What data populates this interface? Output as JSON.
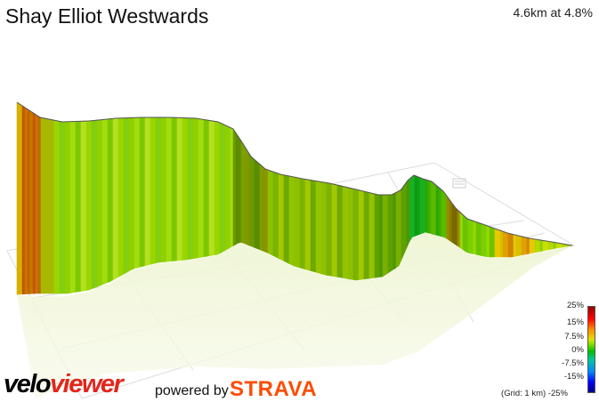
{
  "header": {
    "title": "Shay Elliot Westwards",
    "stats": "4.6km at 4.8%"
  },
  "legend": {
    "labels": [
      "25%",
      "15%",
      "7.5%",
      "0%",
      "-7.5%",
      "-15%",
      "-25%"
    ],
    "grid_note": "(Grid: 1 km)"
  },
  "branding": {
    "velo": "velo",
    "viewer": "viewer",
    "powered_by": "powered by",
    "strava": "STRAVA"
  },
  "colors": {
    "brand_red": "#e2261c",
    "strava_orange": "#fc4c02",
    "grid_line": "#dddddd",
    "profile_edge": "#555555"
  }
}
